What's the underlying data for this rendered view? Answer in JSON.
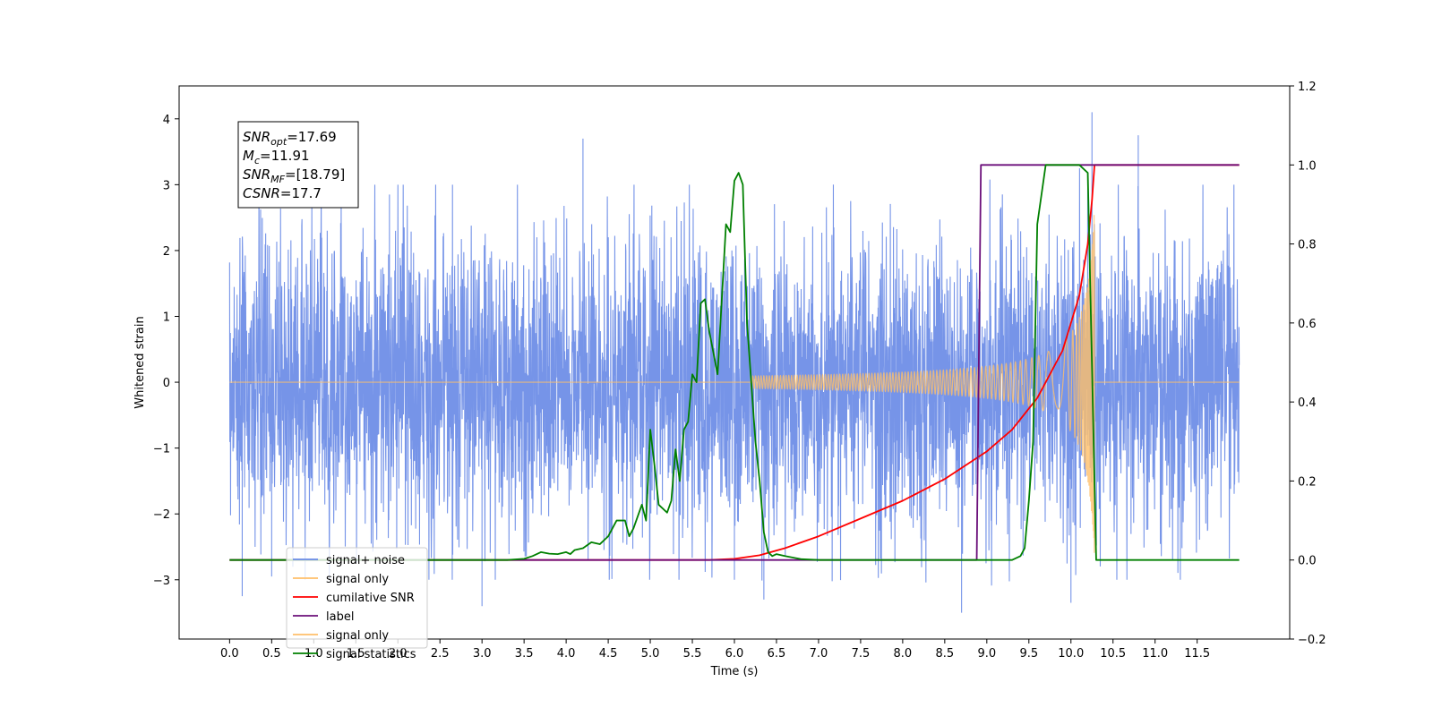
{
  "chart_data": {
    "type": "line",
    "title": "",
    "xlabel": "Time (s)",
    "ylabel": "Whitened strain",
    "ylabel_right": "",
    "xlim": [
      -0.6,
      12.6
    ],
    "ylim_left": [
      -3.9,
      4.5
    ],
    "ylim_right": [
      -0.2,
      1.2
    ],
    "x_ticks": [
      "0.0",
      "0.5",
      "1.0",
      "1.5",
      "2.0",
      "2.5",
      "3.0",
      "3.5",
      "4.0",
      "4.5",
      "5.0",
      "5.5",
      "6.0",
      "6.5",
      "7.0",
      "7.5",
      "8.0",
      "8.5",
      "9.0",
      "9.5",
      "10.0",
      "10.5",
      "11.0",
      "11.5"
    ],
    "y_ticks_left": [
      "−3",
      "−2",
      "−1",
      "0",
      "1",
      "2",
      "3",
      "4"
    ],
    "y_ticks_right": [
      "−0.2",
      "0.0",
      "0.2",
      "0.4",
      "0.6",
      "0.8",
      "1.0",
      "1.2"
    ],
    "grid": false,
    "legend_position": "lower-left",
    "annotation": {
      "lines": [
        {
          "base": "SNR",
          "sub": "opt",
          "value": "=17.69"
        },
        {
          "base": "M",
          "sub": "c",
          "value": "=11.91"
        },
        {
          "base": "SNR",
          "sub": "MF",
          "value": "=[18.79]"
        },
        {
          "base": "CSNR",
          "sub": "",
          "value": "=17.7"
        }
      ]
    },
    "series": [
      {
        "name": "signal+ noise",
        "color": "#6a8be6",
        "axis": "left",
        "kind": "noise",
        "x_range": [
          0.0,
          12.0
        ],
        "amplitude_typical": 1.8,
        "peaks": [
          {
            "x": 3.0,
            "y": -3.4
          },
          {
            "x": 4.2,
            "y": 3.7
          },
          {
            "x": 6.0,
            "y": -3.0
          },
          {
            "x": 6.35,
            "y": -3.3
          },
          {
            "x": 8.7,
            "y": -3.5
          },
          {
            "x": 10.25,
            "y": 4.1
          },
          {
            "x": 10.8,
            "y": 3.75
          },
          {
            "x": 11.3,
            "y": -3.0
          },
          {
            "x": 0.15,
            "y": -3.25
          },
          {
            "x": 0.5,
            "y": -2.95
          },
          {
            "x": 1.9,
            "y": 2.85
          },
          {
            "x": 10.0,
            "y": -3.35
          }
        ]
      },
      {
        "name": "signal only",
        "color": "#ffbf69",
        "axis": "left",
        "kind": "chirp",
        "start": 6.2,
        "end": 10.28,
        "max_amplitude": 2.7
      },
      {
        "name": "cumilative SNR",
        "color": "#ff0000",
        "axis": "right",
        "x": [
          0.0,
          5.5,
          5.7,
          6.0,
          6.3,
          6.6,
          7.0,
          7.5,
          8.0,
          8.5,
          9.0,
          9.3,
          9.6,
          9.9,
          10.1,
          10.2,
          10.25,
          10.28,
          12.0
        ],
        "y": [
          0.0,
          0.0,
          0.0,
          0.003,
          0.012,
          0.03,
          0.06,
          0.105,
          0.15,
          0.205,
          0.275,
          0.33,
          0.41,
          0.53,
          0.67,
          0.8,
          0.91,
          1.0,
          1.0
        ]
      },
      {
        "name": "label",
        "color": "#6b0f7a",
        "axis": "right",
        "x": [
          0.0,
          8.88,
          8.93,
          12.0
        ],
        "y": [
          0.0,
          0.0,
          1.0,
          1.0
        ]
      },
      {
        "name": "signal only",
        "color": "#ffbf69",
        "axis": "right",
        "legend_only": true,
        "x": [],
        "y": []
      },
      {
        "name": "signal statistics",
        "color": "#008000",
        "axis": "right",
        "x": [
          0.0,
          3.3,
          3.5,
          3.6,
          3.7,
          3.8,
          3.9,
          4.0,
          4.05,
          4.1,
          4.2,
          4.3,
          4.4,
          4.5,
          4.6,
          4.7,
          4.75,
          4.8,
          4.9,
          4.95,
          5.0,
          5.05,
          5.1,
          5.2,
          5.25,
          5.3,
          5.35,
          5.4,
          5.45,
          5.5,
          5.55,
          5.6,
          5.65,
          5.7,
          5.8,
          5.9,
          5.95,
          6.0,
          6.05,
          6.1,
          6.15,
          6.2,
          6.25,
          6.3,
          6.35,
          6.4,
          6.45,
          6.5,
          6.6,
          6.8,
          7.0,
          9.3,
          9.4,
          9.45,
          9.5,
          9.55,
          9.6,
          9.7,
          9.8,
          9.9,
          10.0,
          10.1,
          10.2,
          10.3,
          12.0
        ],
        "y": [
          0.0,
          0.0,
          0.003,
          0.01,
          0.02,
          0.016,
          0.015,
          0.02,
          0.015,
          0.025,
          0.03,
          0.045,
          0.04,
          0.06,
          0.1,
          0.1,
          0.06,
          0.08,
          0.14,
          0.1,
          0.33,
          0.24,
          0.14,
          0.12,
          0.15,
          0.28,
          0.2,
          0.33,
          0.35,
          0.47,
          0.45,
          0.65,
          0.66,
          0.58,
          0.47,
          0.85,
          0.83,
          0.96,
          0.98,
          0.95,
          0.6,
          0.45,
          0.3,
          0.2,
          0.07,
          0.02,
          0.01,
          0.015,
          0.01,
          0.002,
          0.0,
          0.0,
          0.01,
          0.03,
          0.15,
          0.3,
          0.85,
          1.0,
          1.0,
          1.0,
          1.0,
          1.0,
          0.98,
          0.0,
          0.0
        ]
      }
    ]
  }
}
